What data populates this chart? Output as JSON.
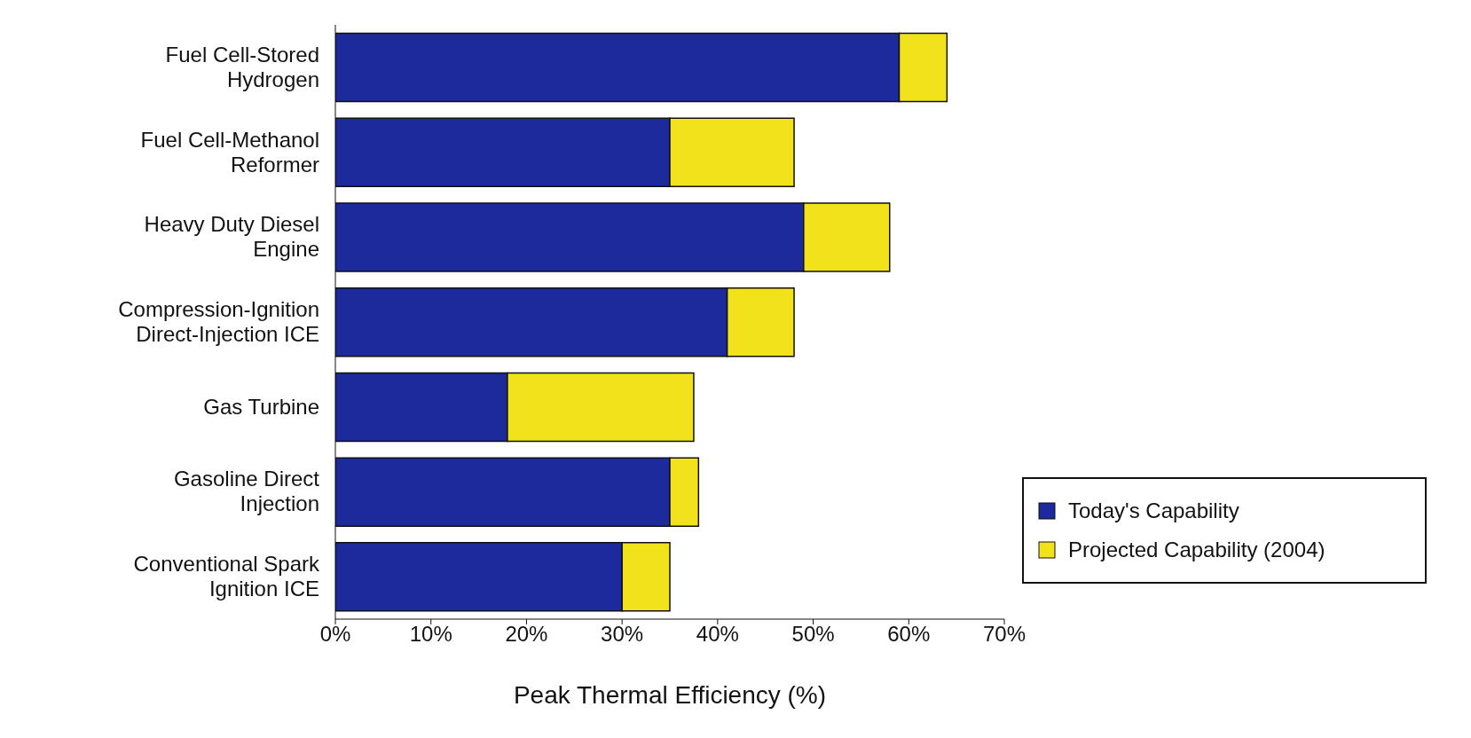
{
  "chart_data": {
    "type": "bar",
    "orientation": "horizontal",
    "stacked": true,
    "xlabel": "Peak Thermal Efficiency (%)",
    "categories": [
      "Fuel Cell-Stored Hydrogen",
      "Fuel Cell-Methanol Reformer",
      "Heavy Duty Diesel Engine",
      "Compression-Ignition Direct-Injection ICE",
      "Gas Turbine",
      "Gasoline Direct Injection",
      "Conventional Spark Ignition ICE"
    ],
    "series": [
      {
        "name": "Today's Capability",
        "color": "#1c2a9c",
        "values": [
          59,
          35,
          49,
          41,
          18,
          35,
          30
        ]
      },
      {
        "name": "Projected Capability (2004)",
        "color": "#f2e21c",
        "values": [
          5,
          13,
          9,
          7,
          19.5,
          3,
          5
        ]
      }
    ],
    "xlim": [
      0,
      70
    ],
    "xticks": [
      {
        "value": 0,
        "label": "0%"
      },
      {
        "value": 10,
        "label": "10%"
      },
      {
        "value": 20,
        "label": "20%"
      },
      {
        "value": 30,
        "label": "30%"
      },
      {
        "value": 40,
        "label": "40%"
      },
      {
        "value": 50,
        "label": "50%"
      },
      {
        "value": 60,
        "label": "60%"
      },
      {
        "value": 70,
        "label": "70%"
      }
    ],
    "legend": "bottom right",
    "grid": false
  }
}
